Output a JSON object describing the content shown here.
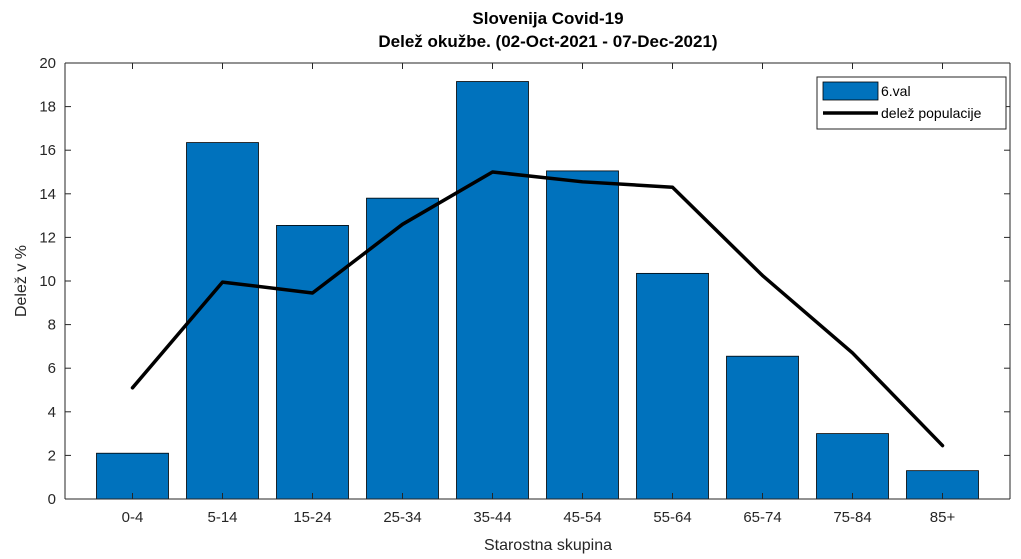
{
  "chart_data": {
    "type": "bar",
    "title": "Slovenija Covid-19",
    "subtitle": "Delež okužbe. (02-Oct-2021 - 07-Dec-2021)",
    "xlabel": "Starostna skupina",
    "ylabel": "Delež v %",
    "ylim": [
      0,
      20
    ],
    "yticks": [
      "0",
      "2",
      "4",
      "6",
      "8",
      "10",
      "12",
      "14",
      "16",
      "18",
      "20"
    ],
    "categories": [
      "0-4",
      "5-14",
      "15-24",
      "25-34",
      "35-44",
      "45-54",
      "55-64",
      "65-74",
      "75-84",
      "85+"
    ],
    "series": [
      {
        "name": "6.val",
        "kind": "bar",
        "color": "#0072BD",
        "values": [
          2.1,
          16.35,
          12.55,
          13.8,
          19.15,
          15.05,
          10.35,
          6.55,
          3.0,
          1.3
        ]
      },
      {
        "name": "delež populacije",
        "kind": "line",
        "color": "#000000",
        "values": [
          5.1,
          9.95,
          9.45,
          12.6,
          15.0,
          14.55,
          14.3,
          10.25,
          6.7,
          2.45
        ]
      }
    ],
    "legend_position": "top-right",
    "grid": false
  }
}
